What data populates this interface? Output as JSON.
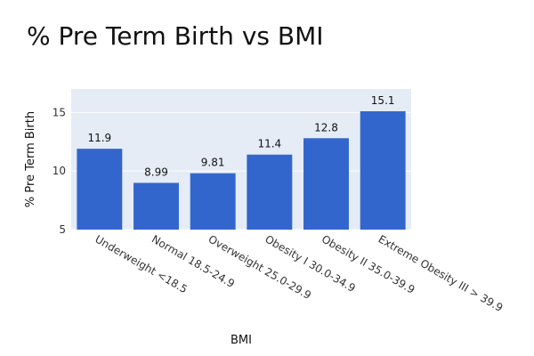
{
  "chart_data": {
    "type": "bar",
    "title": "% Pre Term Birth vs BMI",
    "xlabel": "BMI",
    "ylabel": "% Pre Term Birth",
    "categories": [
      "Underweight <18.5",
      "Normal 18.5-24.9",
      "Overweight 25.0-29.9",
      "Obesity I 30.0-34.9",
      "Obesity II 35.0-39.9",
      "Extreme Obesity III > 39.9"
    ],
    "values": [
      11.9,
      8.99,
      9.81,
      11.4,
      12.8,
      15.1
    ],
    "data_labels": [
      "11.9",
      "8.99",
      "9.81",
      "11.4",
      "12.8",
      "15.1"
    ],
    "ylim": [
      5,
      17
    ],
    "yticks": [
      5,
      10,
      15
    ],
    "grid": true,
    "bar_color": "#3366CC",
    "plot_background": "#E5ECF6"
  }
}
